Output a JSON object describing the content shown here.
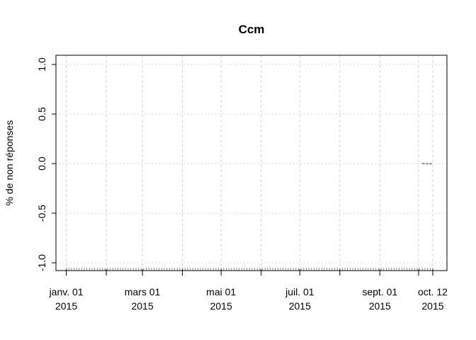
{
  "chart_data": {
    "type": "line",
    "title": "Ccm",
    "xlabel": "",
    "ylabel": "% de non réponses",
    "ylim": [
      -1.0,
      1.0
    ],
    "xlim": [
      "2014-12-24",
      "2015-10-23"
    ],
    "yticks": [
      {
        "value": -1.0,
        "label": "-1.0"
      },
      {
        "value": -0.5,
        "label": "-0.5"
      },
      {
        "value": 0.0,
        "label": "0.0"
      },
      {
        "value": 0.5,
        "label": "0.5"
      },
      {
        "value": 1.0,
        "label": "1.0"
      }
    ],
    "xticks": [
      {
        "date": "2015-01-01",
        "line1": "janv. 01",
        "line2": "2015"
      },
      {
        "date": "2015-03-01",
        "line1": "mars 01",
        "line2": "2015"
      },
      {
        "date": "2015-05-01",
        "line1": "mai 01",
        "line2": "2015"
      },
      {
        "date": "2015-07-01",
        "line1": "juil. 01",
        "line2": "2015"
      },
      {
        "date": "2015-09-01",
        "line1": "sept. 01",
        "line2": "2015"
      },
      {
        "date": "2015-10-12",
        "line1": "oct. 12",
        "line2": "2015"
      }
    ],
    "x_grid_dates": [
      "2015-01-01",
      "2015-02-01",
      "2015-03-01",
      "2015-04-01",
      "2015-05-01",
      "2015-06-01",
      "2015-07-01",
      "2015-08-01",
      "2015-09-01",
      "2015-10-01",
      "2015-10-12"
    ],
    "minor_ticks": {
      "from": "2015-01-01",
      "to": "2015-10-12",
      "step_days": 2
    },
    "series": [
      {
        "style": "dashed",
        "color": "#000000",
        "x": [
          "2015-10-04",
          "2015-10-12"
        ],
        "y": [
          0.0,
          0.0
        ]
      }
    ],
    "grid": true,
    "grid_color": "#d3d3d3"
  }
}
